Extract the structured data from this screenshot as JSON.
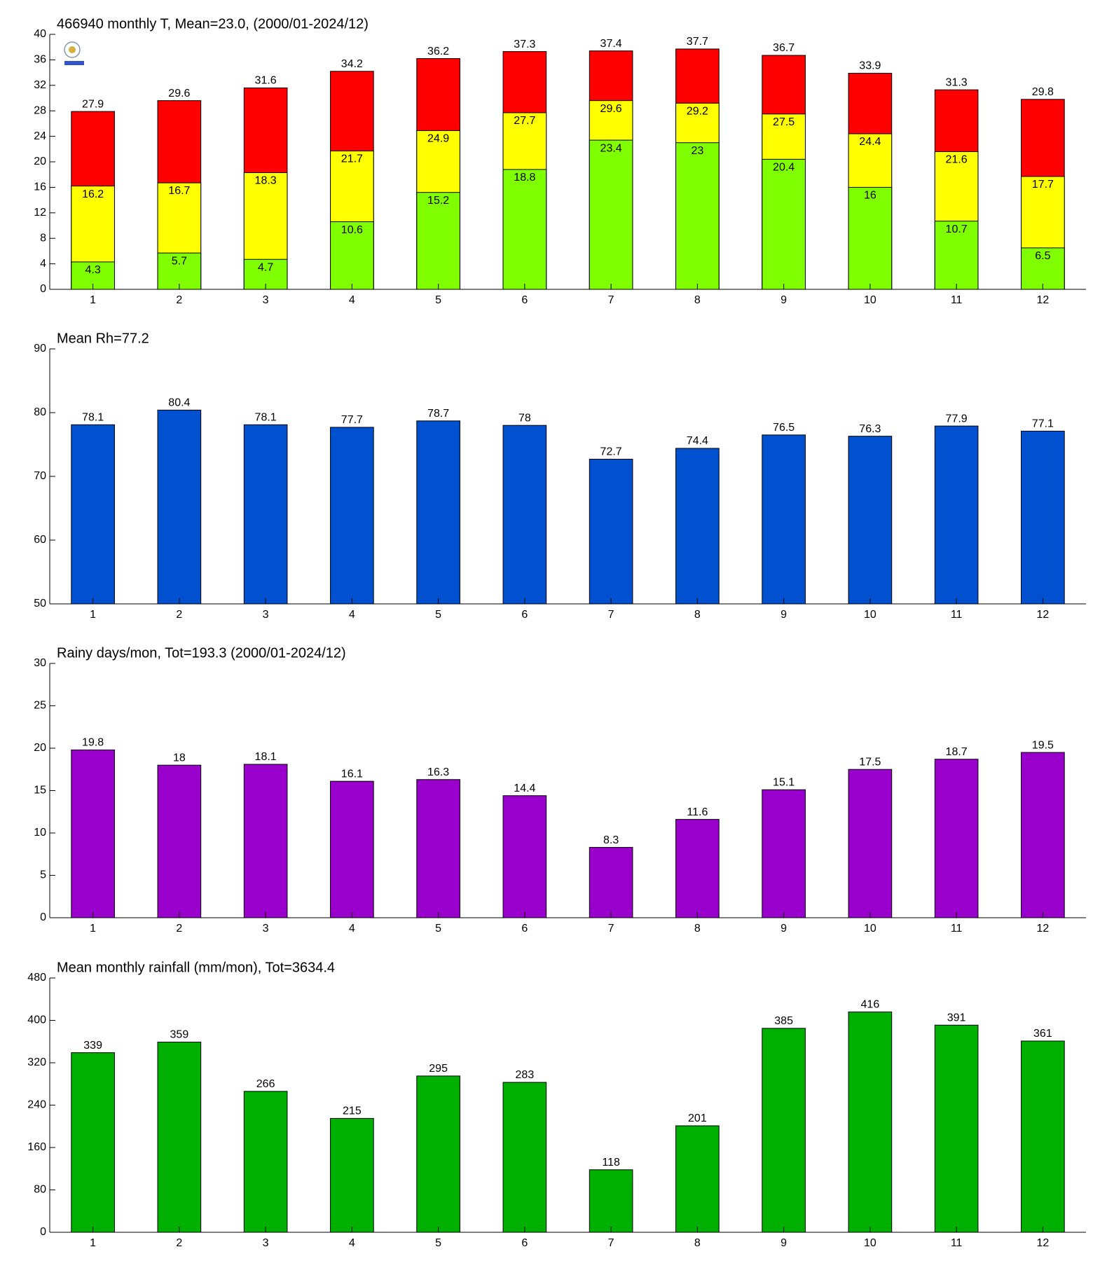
{
  "chart_data": [
    {
      "type": "bar",
      "title": "466940 monthly T, Mean=23.0, (2000/01-2024/12)",
      "categories": [
        "1",
        "2",
        "3",
        "4",
        "5",
        "6",
        "7",
        "8",
        "9",
        "10",
        "11",
        "12"
      ],
      "series": [
        {
          "color": "#ff0000",
          "values": [
            27.9,
            29.6,
            31.6,
            34.2,
            36.2,
            37.3,
            37.4,
            37.7,
            36.7,
            33.9,
            31.3,
            29.8
          ]
        },
        {
          "color": "#ffff00",
          "values": [
            16.2,
            16.7,
            18.3,
            21.7,
            24.9,
            27.7,
            29.6,
            29.2,
            27.5,
            24.4,
            21.6,
            17.7
          ]
        },
        {
          "color": "#80ff00",
          "values": [
            4.3,
            5.7,
            4.7,
            10.6,
            15.2,
            18.8,
            23.4,
            23,
            20.4,
            16,
            10.7,
            6.5
          ]
        }
      ],
      "ylim": [
        0,
        40
      ],
      "yticks": [
        0,
        4,
        8,
        12,
        16,
        20,
        24,
        28,
        32,
        36,
        40
      ]
    },
    {
      "type": "bar",
      "title": "Mean Rh=77.2",
      "categories": [
        "1",
        "2",
        "3",
        "4",
        "5",
        "6",
        "7",
        "8",
        "9",
        "10",
        "11",
        "12"
      ],
      "series": [
        {
          "color": "#0050d0",
          "values": [
            78.1,
            80.4,
            78.1,
            77.7,
            78.7,
            78,
            72.7,
            74.4,
            76.5,
            76.3,
            77.9,
            77.1
          ]
        }
      ],
      "ylim": [
        50,
        90
      ],
      "yticks": [
        50,
        60,
        70,
        80,
        90
      ]
    },
    {
      "type": "bar",
      "title": "Rainy days/mon, Tot=193.3 (2000/01-2024/12)",
      "categories": [
        "1",
        "2",
        "3",
        "4",
        "5",
        "6",
        "7",
        "8",
        "9",
        "10",
        "11",
        "12"
      ],
      "series": [
        {
          "color": "#9900cc",
          "values": [
            19.8,
            18,
            18.1,
            16.1,
            16.3,
            14.4,
            8.3,
            11.6,
            15.1,
            17.5,
            18.7,
            19.5
          ]
        }
      ],
      "ylim": [
        0,
        30
      ],
      "yticks": [
        0,
        5,
        10,
        15,
        20,
        25,
        30
      ]
    },
    {
      "type": "bar",
      "title": "Mean monthly rainfall (mm/mon), Tot=3634.4",
      "categories": [
        "1",
        "2",
        "3",
        "4",
        "5",
        "6",
        "7",
        "8",
        "9",
        "10",
        "11",
        "12"
      ],
      "series": [
        {
          "color": "#00b000",
          "values": [
            339,
            359,
            266,
            215,
            295,
            283,
            118,
            201,
            385,
            416,
            391,
            361
          ]
        }
      ],
      "ylim": [
        0,
        480
      ],
      "yticks": [
        0,
        80,
        160,
        240,
        320,
        400,
        480
      ]
    }
  ]
}
